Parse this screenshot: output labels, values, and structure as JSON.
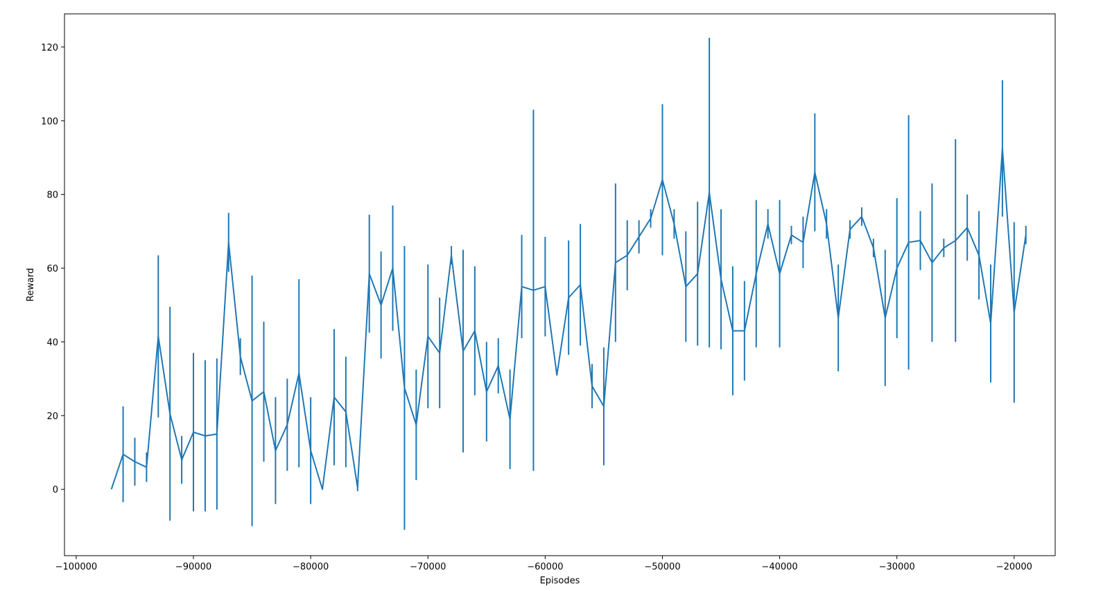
{
  "chart_data": {
    "type": "line",
    "title": "",
    "xlabel": "Episodes",
    "ylabel": "Reward",
    "xlim": [
      -101000,
      -16500
    ],
    "ylim": [
      -18,
      129
    ],
    "xticks": [
      -100000,
      -90000,
      -80000,
      -70000,
      -60000,
      -50000,
      -40000,
      -30000,
      -20000
    ],
    "xtick_labels": [
      "−100000",
      "−90000",
      "−80000",
      "−70000",
      "−60000",
      "−50000",
      "−40000",
      "−30000",
      "−20000"
    ],
    "yticks": [
      0,
      20,
      40,
      60,
      80,
      100,
      120
    ],
    "ytick_labels": [
      "0",
      "20",
      "40",
      "60",
      "80",
      "100",
      "120"
    ],
    "grid": false,
    "color": "#1f77b4",
    "series": [
      {
        "x": [
          -97000,
          -96000,
          -95000,
          -94000,
          -93000,
          -92000,
          -91000,
          -90000,
          -89000,
          -88000,
          -87000,
          -86000,
          -85000,
          -84000,
          -83000,
          -82000,
          -81000,
          -80000,
          -79000,
          -78000,
          -77000,
          -76000,
          -75000,
          -74000,
          -73000,
          -72000,
          -71000,
          -70000,
          -69000,
          -68000,
          -67000,
          -66000,
          -65000,
          -64000,
          -63000,
          -62000,
          -61000,
          -60000,
          -59000,
          -58000,
          -57000,
          -56000,
          -55000,
          -54000,
          -53000,
          -52000,
          -51000,
          -50000,
          -49000,
          -48000,
          -47000,
          -46000,
          -45000,
          -44000,
          -43000,
          -42000,
          -41000,
          -40000,
          -39000,
          -38000,
          -37000,
          -36000,
          -35000,
          -34000,
          -33000,
          -32000,
          -31000,
          -30000,
          -29000,
          -28000,
          -27000,
          -26000,
          -25000,
          -24000,
          -23000,
          -22000,
          -21000,
          -20000,
          -19000
        ],
        "y": [
          0,
          9.5,
          7.5,
          6,
          41.5,
          20.5,
          8,
          15.5,
          14.5,
          15,
          67,
          36,
          24,
          26.5,
          10.5,
          17.5,
          31.5,
          10.5,
          0,
          25,
          21,
          0.5,
          58.5,
          50,
          60,
          27.5,
          17.5,
          41.5,
          37,
          63.5,
          37.5,
          43,
          26.5,
          33.5,
          19,
          55,
          54,
          55,
          31,
          52,
          55.5,
          28,
          22.5,
          61.5,
          63.5,
          68.5,
          73.5,
          84,
          72,
          55,
          58.5,
          80.5,
          57,
          43,
          43,
          58.5,
          72,
          58.5,
          69,
          67,
          86,
          72,
          46.5,
          70.5,
          74,
          65.5,
          46.5,
          60,
          67,
          67.5,
          61.5,
          65.5,
          67.5,
          71,
          63.5,
          45,
          92.5,
          48,
          69
        ],
        "yerr": [
          0,
          13,
          6.5,
          4,
          22,
          29,
          6.5,
          21.5,
          20.5,
          20.5,
          8,
          5,
          34,
          19,
          14.5,
          12.5,
          25.5,
          14.5,
          0,
          18.5,
          15,
          1,
          16,
          14.5,
          17,
          38.5,
          15,
          19.5,
          15,
          2.5,
          27.5,
          17.5,
          13.5,
          7.5,
          13.5,
          14,
          49,
          13.5,
          0,
          15.5,
          16.5,
          6,
          16,
          21.5,
          9.5,
          4.5,
          2.5,
          20.5,
          4,
          15,
          19.5,
          42,
          19,
          17.5,
          13.5,
          20,
          4,
          20,
          2.5,
          7,
          16,
          4,
          14.5,
          2.5,
          2.5,
          2.5,
          18.5,
          19,
          34.5,
          8,
          21.5,
          2.5,
          27.5,
          9,
          12,
          16,
          18.5,
          24.5,
          2.5
        ]
      }
    ]
  }
}
